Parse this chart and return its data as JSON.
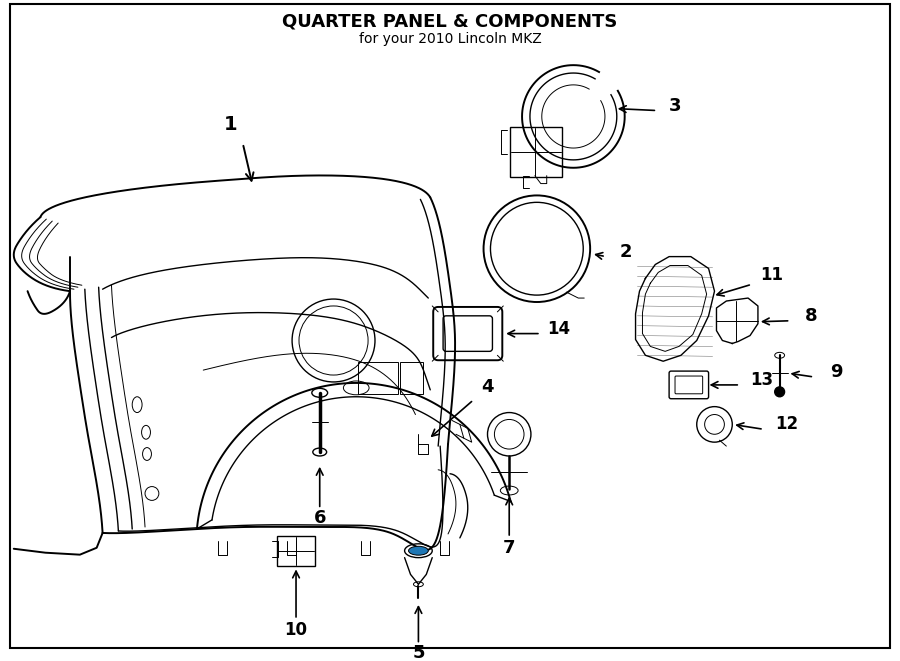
{
  "title": "QUARTER PANEL & COMPONENTS",
  "subtitle": "for your 2010 Lincoln MKZ",
  "bg": "#ffffff",
  "lc": "#000000",
  "fw": 9.0,
  "fh": 6.61,
  "dpi": 100
}
